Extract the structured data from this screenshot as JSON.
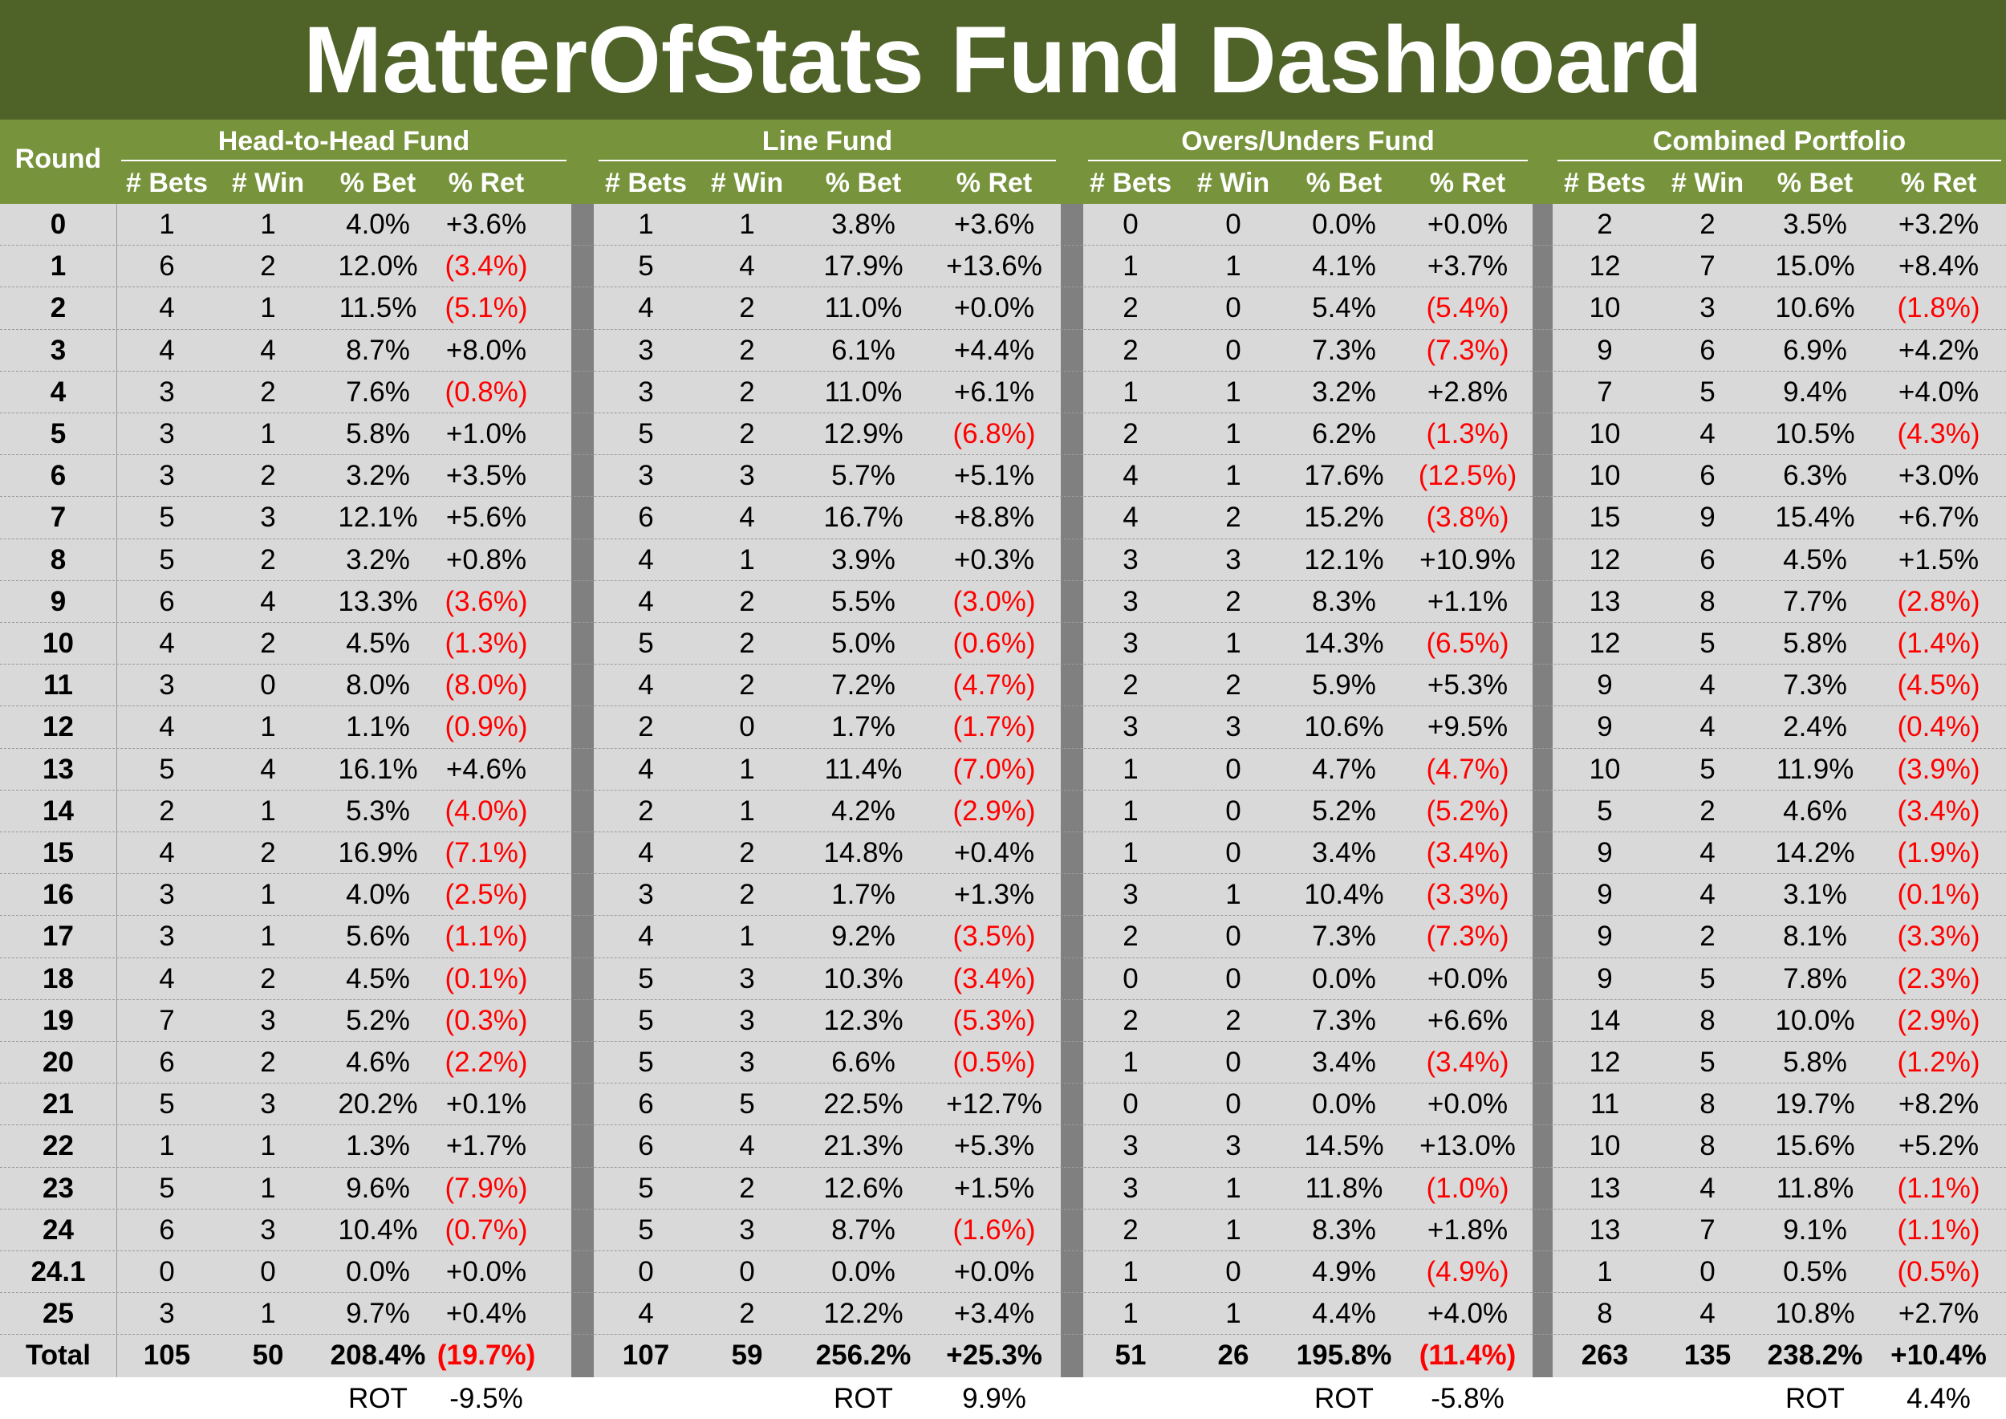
{
  "title": "MatterOfStats Fund Dashboard",
  "header": {
    "round_label": "Round",
    "groups": [
      "Head-to-Head Fund",
      "Line Fund",
      "Overs/Unders Fund",
      "Combined Portfolio"
    ],
    "columns": [
      "# Bets",
      "# Win",
      "% Bet",
      "% Ret"
    ]
  },
  "colors": {
    "title_bg": "#4f6228",
    "header_bg": "#77933c",
    "cell_bg": "#d9d9d9",
    "separator": "#808080",
    "negative": "#ff0000"
  },
  "rows": [
    {
      "round": "0",
      "h2h": [
        "1",
        "1",
        "4.0%",
        "+3.6%"
      ],
      "line": [
        "1",
        "1",
        "3.8%",
        "+3.6%"
      ],
      "ou": [
        "0",
        "0",
        "0.0%",
        "+0.0%"
      ],
      "combined": [
        "2",
        "2",
        "3.5%",
        "+3.2%"
      ]
    },
    {
      "round": "1",
      "h2h": [
        "6",
        "2",
        "12.0%",
        "(3.4%)"
      ],
      "line": [
        "5",
        "4",
        "17.9%",
        "+13.6%"
      ],
      "ou": [
        "1",
        "1",
        "4.1%",
        "+3.7%"
      ],
      "combined": [
        "12",
        "7",
        "15.0%",
        "+8.4%"
      ]
    },
    {
      "round": "2",
      "h2h": [
        "4",
        "1",
        "11.5%",
        "(5.1%)"
      ],
      "line": [
        "4",
        "2",
        "11.0%",
        "+0.0%"
      ],
      "ou": [
        "2",
        "0",
        "5.4%",
        "(5.4%)"
      ],
      "combined": [
        "10",
        "3",
        "10.6%",
        "(1.8%)"
      ]
    },
    {
      "round": "3",
      "h2h": [
        "4",
        "4",
        "8.7%",
        "+8.0%"
      ],
      "line": [
        "3",
        "2",
        "6.1%",
        "+4.4%"
      ],
      "ou": [
        "2",
        "0",
        "7.3%",
        "(7.3%)"
      ],
      "combined": [
        "9",
        "6",
        "6.9%",
        "+4.2%"
      ]
    },
    {
      "round": "4",
      "h2h": [
        "3",
        "2",
        "7.6%",
        "(0.8%)"
      ],
      "line": [
        "3",
        "2",
        "11.0%",
        "+6.1%"
      ],
      "ou": [
        "1",
        "1",
        "3.2%",
        "+2.8%"
      ],
      "combined": [
        "7",
        "5",
        "9.4%",
        "+4.0%"
      ]
    },
    {
      "round": "5",
      "h2h": [
        "3",
        "1",
        "5.8%",
        "+1.0%"
      ],
      "line": [
        "5",
        "2",
        "12.9%",
        "(6.8%)"
      ],
      "ou": [
        "2",
        "1",
        "6.2%",
        "(1.3%)"
      ],
      "combined": [
        "10",
        "4",
        "10.5%",
        "(4.3%)"
      ]
    },
    {
      "round": "6",
      "h2h": [
        "3",
        "2",
        "3.2%",
        "+3.5%"
      ],
      "line": [
        "3",
        "3",
        "5.7%",
        "+5.1%"
      ],
      "ou": [
        "4",
        "1",
        "17.6%",
        "(12.5%)"
      ],
      "combined": [
        "10",
        "6",
        "6.3%",
        "+3.0%"
      ]
    },
    {
      "round": "7",
      "h2h": [
        "5",
        "3",
        "12.1%",
        "+5.6%"
      ],
      "line": [
        "6",
        "4",
        "16.7%",
        "+8.8%"
      ],
      "ou": [
        "4",
        "2",
        "15.2%",
        "(3.8%)"
      ],
      "combined": [
        "15",
        "9",
        "15.4%",
        "+6.7%"
      ]
    },
    {
      "round": "8",
      "h2h": [
        "5",
        "2",
        "3.2%",
        "+0.8%"
      ],
      "line": [
        "4",
        "1",
        "3.9%",
        "+0.3%"
      ],
      "ou": [
        "3",
        "3",
        "12.1%",
        "+10.9%"
      ],
      "combined": [
        "12",
        "6",
        "4.5%",
        "+1.5%"
      ]
    },
    {
      "round": "9",
      "h2h": [
        "6",
        "4",
        "13.3%",
        "(3.6%)"
      ],
      "line": [
        "4",
        "2",
        "5.5%",
        "(3.0%)"
      ],
      "ou": [
        "3",
        "2",
        "8.3%",
        "+1.1%"
      ],
      "combined": [
        "13",
        "8",
        "7.7%",
        "(2.8%)"
      ]
    },
    {
      "round": "10",
      "h2h": [
        "4",
        "2",
        "4.5%",
        "(1.3%)"
      ],
      "line": [
        "5",
        "2",
        "5.0%",
        "(0.6%)"
      ],
      "ou": [
        "3",
        "1",
        "14.3%",
        "(6.5%)"
      ],
      "combined": [
        "12",
        "5",
        "5.8%",
        "(1.4%)"
      ]
    },
    {
      "round": "11",
      "h2h": [
        "3",
        "0",
        "8.0%",
        "(8.0%)"
      ],
      "line": [
        "4",
        "2",
        "7.2%",
        "(4.7%)"
      ],
      "ou": [
        "2",
        "2",
        "5.9%",
        "+5.3%"
      ],
      "combined": [
        "9",
        "4",
        "7.3%",
        "(4.5%)"
      ]
    },
    {
      "round": "12",
      "h2h": [
        "4",
        "1",
        "1.1%",
        "(0.9%)"
      ],
      "line": [
        "2",
        "0",
        "1.7%",
        "(1.7%)"
      ],
      "ou": [
        "3",
        "3",
        "10.6%",
        "+9.5%"
      ],
      "combined": [
        "9",
        "4",
        "2.4%",
        "(0.4%)"
      ]
    },
    {
      "round": "13",
      "h2h": [
        "5",
        "4",
        "16.1%",
        "+4.6%"
      ],
      "line": [
        "4",
        "1",
        "11.4%",
        "(7.0%)"
      ],
      "ou": [
        "1",
        "0",
        "4.7%",
        "(4.7%)"
      ],
      "combined": [
        "10",
        "5",
        "11.9%",
        "(3.9%)"
      ]
    },
    {
      "round": "14",
      "h2h": [
        "2",
        "1",
        "5.3%",
        "(4.0%)"
      ],
      "line": [
        "2",
        "1",
        "4.2%",
        "(2.9%)"
      ],
      "ou": [
        "1",
        "0",
        "5.2%",
        "(5.2%)"
      ],
      "combined": [
        "5",
        "2",
        "4.6%",
        "(3.4%)"
      ]
    },
    {
      "round": "15",
      "h2h": [
        "4",
        "2",
        "16.9%",
        "(7.1%)"
      ],
      "line": [
        "4",
        "2",
        "14.8%",
        "+0.4%"
      ],
      "ou": [
        "1",
        "0",
        "3.4%",
        "(3.4%)"
      ],
      "combined": [
        "9",
        "4",
        "14.2%",
        "(1.9%)"
      ]
    },
    {
      "round": "16",
      "h2h": [
        "3",
        "1",
        "4.0%",
        "(2.5%)"
      ],
      "line": [
        "3",
        "2",
        "1.7%",
        "+1.3%"
      ],
      "ou": [
        "3",
        "1",
        "10.4%",
        "(3.3%)"
      ],
      "combined": [
        "9",
        "4",
        "3.1%",
        "(0.1%)"
      ]
    },
    {
      "round": "17",
      "h2h": [
        "3",
        "1",
        "5.6%",
        "(1.1%)"
      ],
      "line": [
        "4",
        "1",
        "9.2%",
        "(3.5%)"
      ],
      "ou": [
        "2",
        "0",
        "7.3%",
        "(7.3%)"
      ],
      "combined": [
        "9",
        "2",
        "8.1%",
        "(3.3%)"
      ]
    },
    {
      "round": "18",
      "h2h": [
        "4",
        "2",
        "4.5%",
        "(0.1%)"
      ],
      "line": [
        "5",
        "3",
        "10.3%",
        "(3.4%)"
      ],
      "ou": [
        "0",
        "0",
        "0.0%",
        "+0.0%"
      ],
      "combined": [
        "9",
        "5",
        "7.8%",
        "(2.3%)"
      ]
    },
    {
      "round": "19",
      "h2h": [
        "7",
        "3",
        "5.2%",
        "(0.3%)"
      ],
      "line": [
        "5",
        "3",
        "12.3%",
        "(5.3%)"
      ],
      "ou": [
        "2",
        "2",
        "7.3%",
        "+6.6%"
      ],
      "combined": [
        "14",
        "8",
        "10.0%",
        "(2.9%)"
      ]
    },
    {
      "round": "20",
      "h2h": [
        "6",
        "2",
        "4.6%",
        "(2.2%)"
      ],
      "line": [
        "5",
        "3",
        "6.6%",
        "(0.5%)"
      ],
      "ou": [
        "1",
        "0",
        "3.4%",
        "(3.4%)"
      ],
      "combined": [
        "12",
        "5",
        "5.8%",
        "(1.2%)"
      ]
    },
    {
      "round": "21",
      "h2h": [
        "5",
        "3",
        "20.2%",
        "+0.1%"
      ],
      "line": [
        "6",
        "5",
        "22.5%",
        "+12.7%"
      ],
      "ou": [
        "0",
        "0",
        "0.0%",
        "+0.0%"
      ],
      "combined": [
        "11",
        "8",
        "19.7%",
        "+8.2%"
      ]
    },
    {
      "round": "22",
      "h2h": [
        "1",
        "1",
        "1.3%",
        "+1.7%"
      ],
      "line": [
        "6",
        "4",
        "21.3%",
        "+5.3%"
      ],
      "ou": [
        "3",
        "3",
        "14.5%",
        "+13.0%"
      ],
      "combined": [
        "10",
        "8",
        "15.6%",
        "+5.2%"
      ]
    },
    {
      "round": "23",
      "h2h": [
        "5",
        "1",
        "9.6%",
        "(7.9%)"
      ],
      "line": [
        "5",
        "2",
        "12.6%",
        "+1.5%"
      ],
      "ou": [
        "3",
        "1",
        "11.8%",
        "(1.0%)"
      ],
      "combined": [
        "13",
        "4",
        "11.8%",
        "(1.1%)"
      ]
    },
    {
      "round": "24",
      "h2h": [
        "6",
        "3",
        "10.4%",
        "(0.7%)"
      ],
      "line": [
        "5",
        "3",
        "8.7%",
        "(1.6%)"
      ],
      "ou": [
        "2",
        "1",
        "8.3%",
        "+1.8%"
      ],
      "combined": [
        "13",
        "7",
        "9.1%",
        "(1.1%)"
      ]
    },
    {
      "round": "24.1",
      "h2h": [
        "0",
        "0",
        "0.0%",
        "+0.0%"
      ],
      "line": [
        "0",
        "0",
        "0.0%",
        "+0.0%"
      ],
      "ou": [
        "1",
        "0",
        "4.9%",
        "(4.9%)"
      ],
      "combined": [
        "1",
        "0",
        "0.5%",
        "(0.5%)"
      ]
    },
    {
      "round": "25",
      "h2h": [
        "3",
        "1",
        "9.7%",
        "+0.4%"
      ],
      "line": [
        "4",
        "2",
        "12.2%",
        "+3.4%"
      ],
      "ou": [
        "1",
        "1",
        "4.4%",
        "+4.0%"
      ],
      "combined": [
        "8",
        "4",
        "10.8%",
        "+2.7%"
      ]
    }
  ],
  "total": {
    "round": "Total",
    "h2h": [
      "105",
      "50",
      "208.4%",
      "(19.7%)"
    ],
    "line": [
      "107",
      "59",
      "256.2%",
      "+25.3%"
    ],
    "ou": [
      "51",
      "26",
      "195.8%",
      "(11.4%)"
    ],
    "combined": [
      "263",
      "135",
      "238.2%",
      "+10.4%"
    ]
  },
  "rot": {
    "label": "ROT",
    "values": {
      "h2h": "-9.5%",
      "line": "9.9%",
      "ou": "-5.8%",
      "combined": "4.4%"
    }
  }
}
